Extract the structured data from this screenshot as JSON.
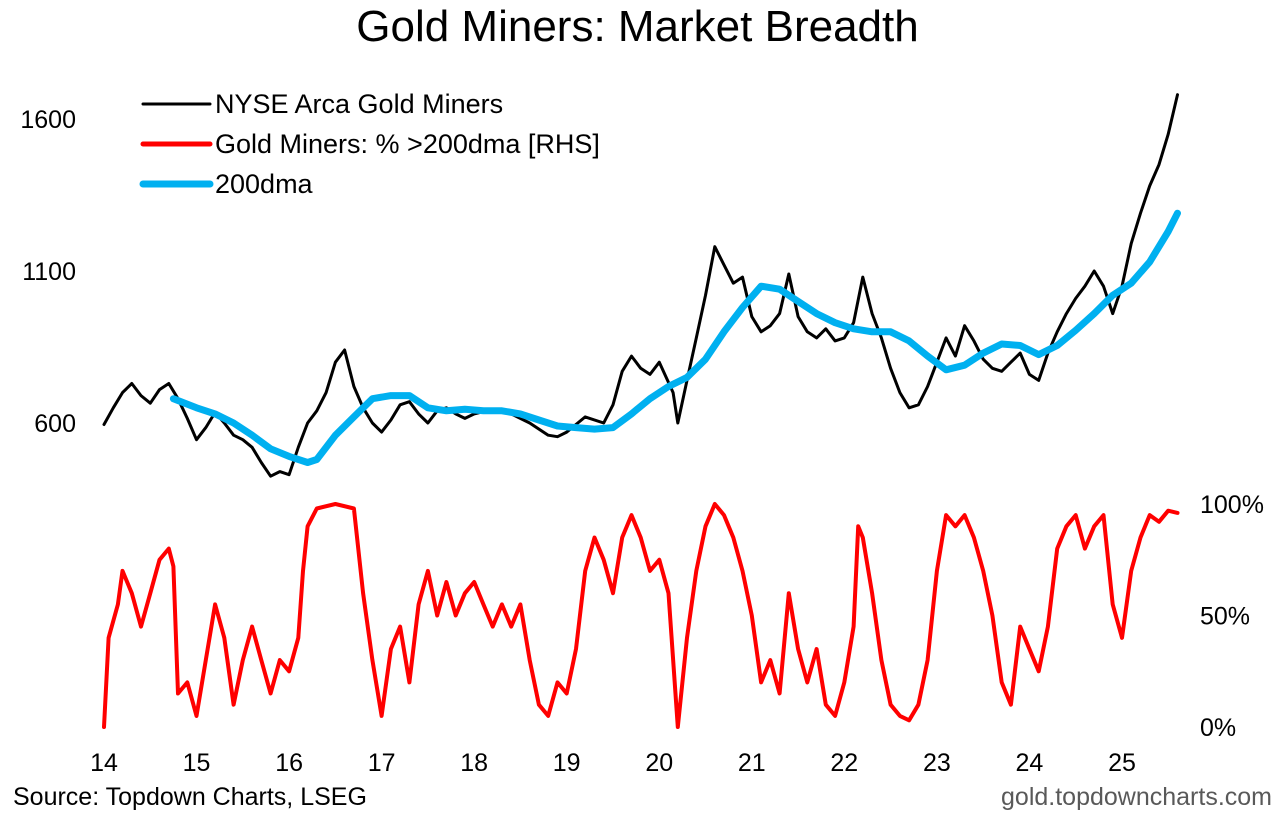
{
  "chart_data": {
    "type": "line",
    "title": "Gold Miners: Market Breadth",
    "source": "Source: Topdown Charts, LSEG",
    "site": "gold.topdowncharts.com",
    "x_ticks": [
      "14",
      "15",
      "16",
      "17",
      "18",
      "19",
      "20",
      "21",
      "22",
      "23",
      "24",
      "25"
    ],
    "x_range": [
      2014.0,
      2025.8
    ],
    "left_axis": {
      "ticks": [
        "600",
        "1100",
        "1600"
      ],
      "tick_values": [
        600,
        1100,
        1600
      ],
      "range": [
        600,
        1600
      ]
    },
    "right_axis": {
      "ticks": [
        "0%",
        "50%",
        "100%"
      ],
      "tick_values": [
        0,
        50,
        100
      ],
      "range": [
        0,
        100
      ]
    },
    "legend": [
      {
        "label": "NYSE Arca Gold Miners",
        "color": "#000000"
      },
      {
        "label": "Gold Miners: % >200dma [RHS]",
        "color": "#ff0000"
      },
      {
        "label": "200dma",
        "color": "#00b0f0"
      }
    ],
    "series": [
      {
        "name": "NYSE Arca Gold Miners",
        "axis": "left",
        "color": "#000000",
        "points": [
          [
            2014.0,
            595
          ],
          [
            2014.1,
            650
          ],
          [
            2014.2,
            700
          ],
          [
            2014.3,
            730
          ],
          [
            2014.4,
            690
          ],
          [
            2014.5,
            665
          ],
          [
            2014.6,
            710
          ],
          [
            2014.7,
            730
          ],
          [
            2014.8,
            680
          ],
          [
            2014.9,
            615
          ],
          [
            2015.0,
            545
          ],
          [
            2015.1,
            585
          ],
          [
            2015.2,
            635
          ],
          [
            2015.3,
            600
          ],
          [
            2015.4,
            560
          ],
          [
            2015.5,
            545
          ],
          [
            2015.6,
            520
          ],
          [
            2015.7,
            470
          ],
          [
            2015.8,
            425
          ],
          [
            2015.9,
            440
          ],
          [
            2016.0,
            430
          ],
          [
            2016.1,
            520
          ],
          [
            2016.2,
            600
          ],
          [
            2016.3,
            640
          ],
          [
            2016.4,
            700
          ],
          [
            2016.5,
            800
          ],
          [
            2016.6,
            840
          ],
          [
            2016.7,
            720
          ],
          [
            2016.8,
            650
          ],
          [
            2016.9,
            600
          ],
          [
            2017.0,
            570
          ],
          [
            2017.1,
            610
          ],
          [
            2017.2,
            660
          ],
          [
            2017.3,
            670
          ],
          [
            2017.4,
            630
          ],
          [
            2017.5,
            600
          ],
          [
            2017.6,
            640
          ],
          [
            2017.7,
            650
          ],
          [
            2017.8,
            630
          ],
          [
            2017.9,
            615
          ],
          [
            2018.0,
            630
          ],
          [
            2018.2,
            645
          ],
          [
            2018.4,
            630
          ],
          [
            2018.6,
            600
          ],
          [
            2018.8,
            560
          ],
          [
            2018.9,
            555
          ],
          [
            2019.0,
            570
          ],
          [
            2019.2,
            620
          ],
          [
            2019.4,
            600
          ],
          [
            2019.5,
            660
          ],
          [
            2019.6,
            770
          ],
          [
            2019.7,
            820
          ],
          [
            2019.8,
            780
          ],
          [
            2019.9,
            760
          ],
          [
            2020.0,
            800
          ],
          [
            2020.15,
            700
          ],
          [
            2020.2,
            600
          ],
          [
            2020.3,
            740
          ],
          [
            2020.4,
            880
          ],
          [
            2020.5,
            1020
          ],
          [
            2020.6,
            1180
          ],
          [
            2020.7,
            1120
          ],
          [
            2020.8,
            1060
          ],
          [
            2020.9,
            1080
          ],
          [
            2021.0,
            950
          ],
          [
            2021.1,
            900
          ],
          [
            2021.2,
            920
          ],
          [
            2021.3,
            960
          ],
          [
            2021.4,
            1090
          ],
          [
            2021.5,
            950
          ],
          [
            2021.6,
            900
          ],
          [
            2021.7,
            880
          ],
          [
            2021.8,
            910
          ],
          [
            2021.9,
            870
          ],
          [
            2022.0,
            880
          ],
          [
            2022.1,
            930
          ],
          [
            2022.2,
            1080
          ],
          [
            2022.3,
            960
          ],
          [
            2022.4,
            880
          ],
          [
            2022.5,
            780
          ],
          [
            2022.6,
            700
          ],
          [
            2022.7,
            650
          ],
          [
            2022.8,
            660
          ],
          [
            2022.9,
            720
          ],
          [
            2023.0,
            800
          ],
          [
            2023.1,
            880
          ],
          [
            2023.2,
            820
          ],
          [
            2023.3,
            920
          ],
          [
            2023.4,
            870
          ],
          [
            2023.5,
            810
          ],
          [
            2023.6,
            780
          ],
          [
            2023.7,
            770
          ],
          [
            2023.8,
            800
          ],
          [
            2023.9,
            830
          ],
          [
            2024.0,
            760
          ],
          [
            2024.1,
            740
          ],
          [
            2024.2,
            830
          ],
          [
            2024.3,
            900
          ],
          [
            2024.4,
            960
          ],
          [
            2024.5,
            1010
          ],
          [
            2024.6,
            1050
          ],
          [
            2024.7,
            1100
          ],
          [
            2024.8,
            1050
          ],
          [
            2024.9,
            960
          ],
          [
            2025.0,
            1050
          ],
          [
            2025.1,
            1190
          ],
          [
            2025.2,
            1290
          ],
          [
            2025.3,
            1380
          ],
          [
            2025.4,
            1450
          ],
          [
            2025.5,
            1550
          ],
          [
            2025.6,
            1680
          ]
        ]
      },
      {
        "name": "200dma",
        "axis": "left",
        "color": "#00b0f0",
        "points": [
          [
            2014.75,
            680
          ],
          [
            2015.0,
            650
          ],
          [
            2015.2,
            630
          ],
          [
            2015.4,
            600
          ],
          [
            2015.6,
            560
          ],
          [
            2015.8,
            515
          ],
          [
            2016.0,
            490
          ],
          [
            2016.2,
            470
          ],
          [
            2016.3,
            480
          ],
          [
            2016.5,
            560
          ],
          [
            2016.7,
            620
          ],
          [
            2016.9,
            680
          ],
          [
            2017.1,
            690
          ],
          [
            2017.3,
            690
          ],
          [
            2017.5,
            650
          ],
          [
            2017.7,
            640
          ],
          [
            2017.9,
            645
          ],
          [
            2018.1,
            640
          ],
          [
            2018.3,
            640
          ],
          [
            2018.5,
            630
          ],
          [
            2018.7,
            610
          ],
          [
            2018.9,
            590
          ],
          [
            2019.1,
            585
          ],
          [
            2019.3,
            580
          ],
          [
            2019.5,
            585
          ],
          [
            2019.7,
            630
          ],
          [
            2019.9,
            680
          ],
          [
            2020.1,
            720
          ],
          [
            2020.3,
            750
          ],
          [
            2020.5,
            810
          ],
          [
            2020.7,
            900
          ],
          [
            2020.9,
            980
          ],
          [
            2021.1,
            1050
          ],
          [
            2021.3,
            1040
          ],
          [
            2021.5,
            1000
          ],
          [
            2021.7,
            960
          ],
          [
            2021.9,
            930
          ],
          [
            2022.1,
            910
          ],
          [
            2022.3,
            900
          ],
          [
            2022.5,
            900
          ],
          [
            2022.7,
            870
          ],
          [
            2022.9,
            820
          ],
          [
            2023.1,
            775
          ],
          [
            2023.3,
            790
          ],
          [
            2023.5,
            830
          ],
          [
            2023.7,
            860
          ],
          [
            2023.9,
            855
          ],
          [
            2024.1,
            825
          ],
          [
            2024.3,
            855
          ],
          [
            2024.5,
            905
          ],
          [
            2024.7,
            960
          ],
          [
            2024.9,
            1020
          ],
          [
            2025.1,
            1060
          ],
          [
            2025.3,
            1130
          ],
          [
            2025.5,
            1230
          ],
          [
            2025.6,
            1290
          ]
        ]
      },
      {
        "name": "Gold Miners: % >200dma [RHS]",
        "axis": "right",
        "color": "#ff0000",
        "points": [
          [
            2014.0,
            0
          ],
          [
            2014.05,
            40
          ],
          [
            2014.15,
            55
          ],
          [
            2014.2,
            70
          ],
          [
            2014.3,
            60
          ],
          [
            2014.4,
            45
          ],
          [
            2014.5,
            60
          ],
          [
            2014.6,
            75
          ],
          [
            2014.7,
            80
          ],
          [
            2014.75,
            72
          ],
          [
            2014.8,
            15
          ],
          [
            2014.9,
            20
          ],
          [
            2015.0,
            5
          ],
          [
            2015.1,
            30
          ],
          [
            2015.2,
            55
          ],
          [
            2015.3,
            40
          ],
          [
            2015.4,
            10
          ],
          [
            2015.5,
            30
          ],
          [
            2015.6,
            45
          ],
          [
            2015.7,
            30
          ],
          [
            2015.8,
            15
          ],
          [
            2015.9,
            30
          ],
          [
            2016.0,
            25
          ],
          [
            2016.1,
            40
          ],
          [
            2016.15,
            70
          ],
          [
            2016.2,
            90
          ],
          [
            2016.3,
            98
          ],
          [
            2016.5,
            100
          ],
          [
            2016.7,
            98
          ],
          [
            2016.8,
            60
          ],
          [
            2016.9,
            30
          ],
          [
            2017.0,
            5
          ],
          [
            2017.1,
            35
          ],
          [
            2017.2,
            45
          ],
          [
            2017.3,
            20
          ],
          [
            2017.4,
            55
          ],
          [
            2017.5,
            70
          ],
          [
            2017.6,
            50
          ],
          [
            2017.7,
            65
          ],
          [
            2017.8,
            50
          ],
          [
            2017.9,
            60
          ],
          [
            2018.0,
            65
          ],
          [
            2018.1,
            55
          ],
          [
            2018.2,
            45
          ],
          [
            2018.3,
            55
          ],
          [
            2018.4,
            45
          ],
          [
            2018.5,
            55
          ],
          [
            2018.6,
            30
          ],
          [
            2018.7,
            10
          ],
          [
            2018.8,
            5
          ],
          [
            2018.9,
            20
          ],
          [
            2019.0,
            15
          ],
          [
            2019.1,
            35
          ],
          [
            2019.2,
            70
          ],
          [
            2019.3,
            85
          ],
          [
            2019.4,
            75
          ],
          [
            2019.5,
            60
          ],
          [
            2019.6,
            85
          ],
          [
            2019.7,
            95
          ],
          [
            2019.8,
            85
          ],
          [
            2019.9,
            70
          ],
          [
            2020.0,
            75
          ],
          [
            2020.1,
            60
          ],
          [
            2020.2,
            0
          ],
          [
            2020.3,
            40
          ],
          [
            2020.4,
            70
          ],
          [
            2020.5,
            90
          ],
          [
            2020.6,
            100
          ],
          [
            2020.7,
            95
          ],
          [
            2020.8,
            85
          ],
          [
            2020.9,
            70
          ],
          [
            2021.0,
            50
          ],
          [
            2021.1,
            20
          ],
          [
            2021.2,
            30
          ],
          [
            2021.3,
            15
          ],
          [
            2021.4,
            60
          ],
          [
            2021.5,
            35
          ],
          [
            2021.6,
            20
          ],
          [
            2021.7,
            35
          ],
          [
            2021.8,
            10
          ],
          [
            2021.9,
            5
          ],
          [
            2022.0,
            20
          ],
          [
            2022.1,
            45
          ],
          [
            2022.15,
            90
          ],
          [
            2022.2,
            85
          ],
          [
            2022.3,
            60
          ],
          [
            2022.4,
            30
          ],
          [
            2022.5,
            10
          ],
          [
            2022.6,
            5
          ],
          [
            2022.7,
            3
          ],
          [
            2022.8,
            10
          ],
          [
            2022.9,
            30
          ],
          [
            2023.0,
            70
          ],
          [
            2023.1,
            95
          ],
          [
            2023.2,
            90
          ],
          [
            2023.3,
            95
          ],
          [
            2023.4,
            85
          ],
          [
            2023.5,
            70
          ],
          [
            2023.6,
            50
          ],
          [
            2023.7,
            20
          ],
          [
            2023.8,
            10
          ],
          [
            2023.9,
            45
          ],
          [
            2024.0,
            35
          ],
          [
            2024.1,
            25
          ],
          [
            2024.2,
            45
          ],
          [
            2024.3,
            80
          ],
          [
            2024.4,
            90
          ],
          [
            2024.5,
            95
          ],
          [
            2024.6,
            80
          ],
          [
            2024.7,
            90
          ],
          [
            2024.8,
            95
          ],
          [
            2024.9,
            55
          ],
          [
            2025.0,
            40
          ],
          [
            2025.1,
            70
          ],
          [
            2025.2,
            85
          ],
          [
            2025.3,
            95
          ],
          [
            2025.4,
            92
          ],
          [
            2025.5,
            97
          ],
          [
            2025.6,
            96
          ]
        ]
      }
    ]
  }
}
